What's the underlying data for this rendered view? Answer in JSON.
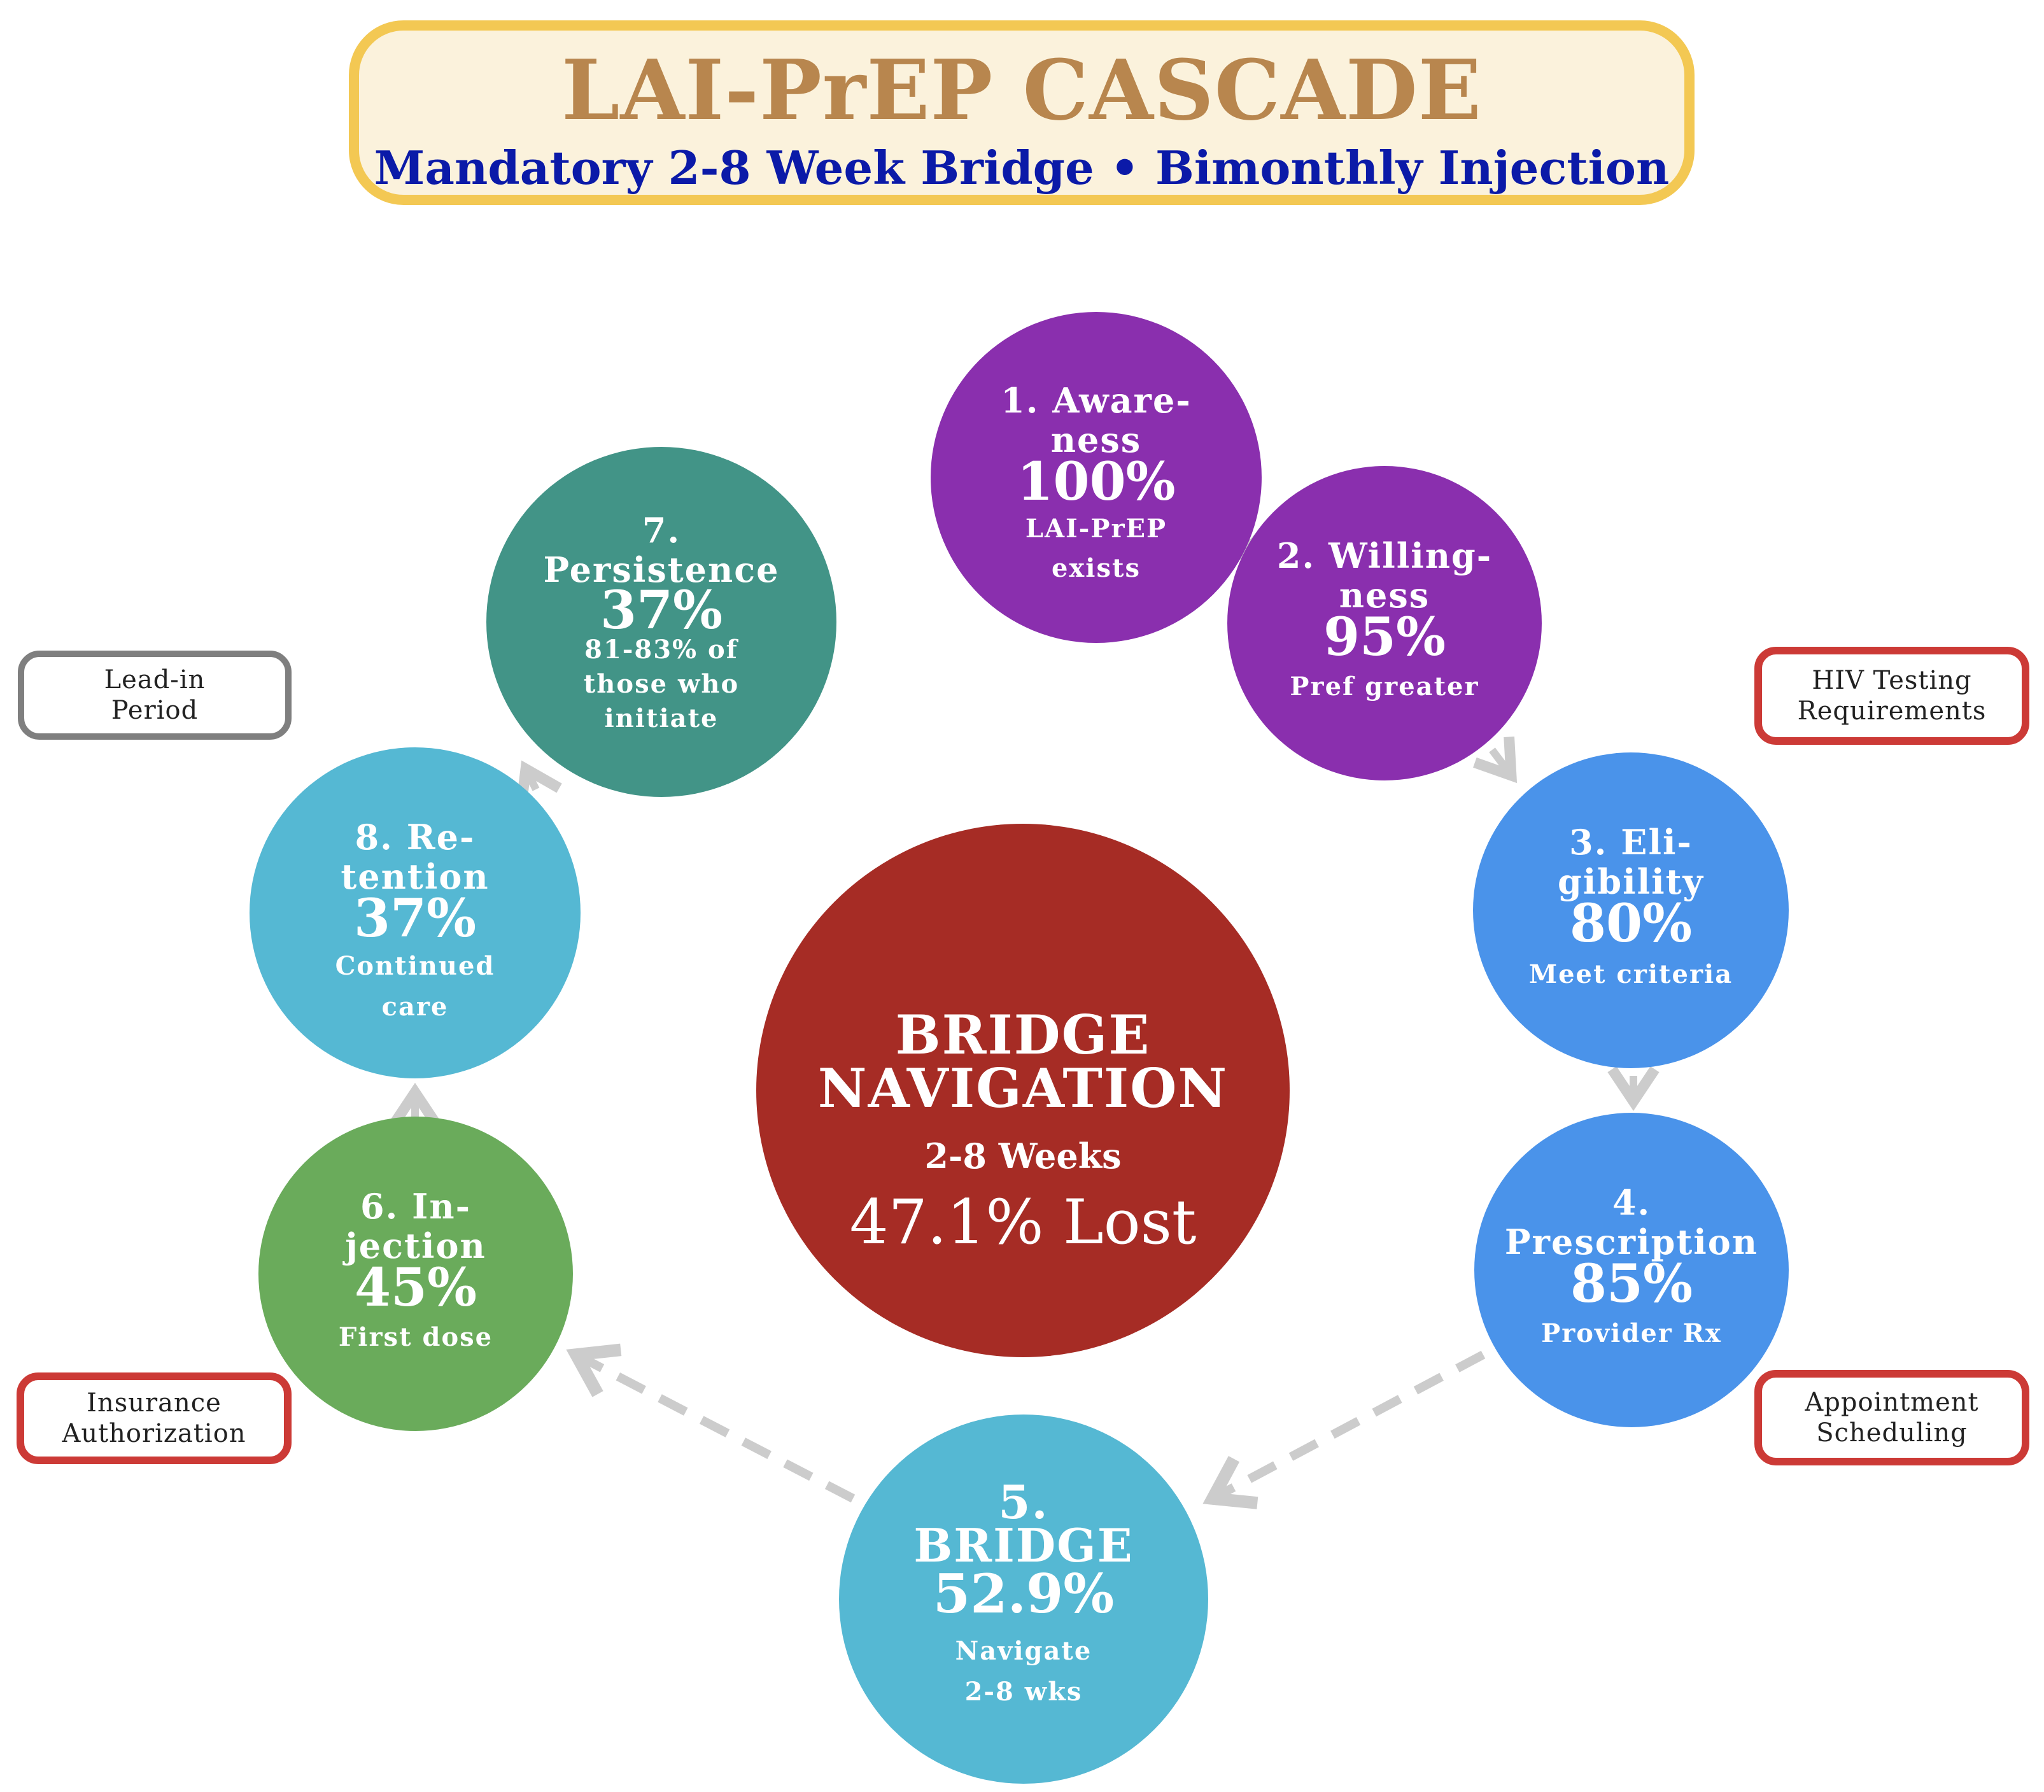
{
  "header": {
    "title": "LAI-PrEP CASCADE",
    "subtitle": "Mandatory 2-8 Week Bridge • Bimonthly Injection",
    "border_color": "#f3c853",
    "background_color": "#fbf2dc",
    "title_color": "#b8864e",
    "subtitle_color": "#0b1aa8"
  },
  "hub": {
    "title_lines": [
      "BRIDGE",
      "NAVIGATION"
    ],
    "duration": "2-8 Weeks",
    "loss": "47.1% Lost",
    "color": "#a62c25"
  },
  "stages": [
    {
      "number": 1,
      "title_lines": [
        "1. Aware-",
        "ness"
      ],
      "percent": "100%",
      "note_lines": [
        "LAI-PrEP",
        "exists"
      ],
      "value": 100,
      "color": "#8a2fae"
    },
    {
      "number": 2,
      "title_lines": [
        "2. Willing-",
        "ness"
      ],
      "percent": "95%",
      "note_lines": [
        "Pref greater"
      ],
      "value": 95,
      "color": "#8a2fae"
    },
    {
      "number": 3,
      "title_lines": [
        "3. Eli-",
        "gibility"
      ],
      "percent": "80%",
      "note_lines": [
        "Meet criteria"
      ],
      "value": 80,
      "color": "#4a93ea"
    },
    {
      "number": 4,
      "title_lines": [
        "4.",
        "Prescription"
      ],
      "percent": "85%",
      "note_lines": [
        "Provider Rx"
      ],
      "value": 85,
      "color": "#4a93ea"
    },
    {
      "number": 5,
      "title_lines": [
        "5.",
        "BRIDGE"
      ],
      "percent": "52.9%",
      "note_lines": [
        "Navigate",
        "2-8 wks"
      ],
      "value": 52.9,
      "color": "#55b8d3"
    },
    {
      "number": 6,
      "title_lines": [
        "6. In-",
        "jection"
      ],
      "percent": "45%",
      "note_lines": [
        "First dose"
      ],
      "value": 45,
      "color": "#6aab5b"
    },
    {
      "number": 8,
      "title_lines": [
        "8. Re-",
        "tention"
      ],
      "percent": "37%",
      "note_lines": [
        "Continued",
        "care"
      ],
      "value": 37,
      "color": "#55b8d3"
    },
    {
      "number": 7,
      "title_lines": [
        "7.",
        "Persistence"
      ],
      "percent": "37%",
      "note_lines": [
        "81-83% of",
        "those who",
        "initiate"
      ],
      "value": 37,
      "color": "#429487"
    }
  ],
  "barriers": [
    {
      "lines": [
        "HIV Testing",
        "Requirements"
      ],
      "color": "#cc3a36"
    },
    {
      "lines": [
        "Appointment",
        "Scheduling"
      ],
      "color": "#cc3a36"
    },
    {
      "lines": [
        "Insurance",
        "Authorization"
      ],
      "color": "#cc3a36"
    },
    {
      "lines": [
        "Lead-in",
        "Period"
      ],
      "color": "#7f7f7f"
    }
  ],
  "arrow_color": "#cccccc"
}
